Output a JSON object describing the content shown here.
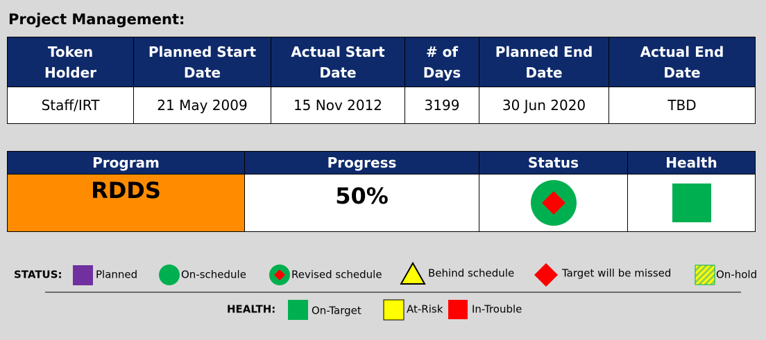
{
  "title": "Project Management:",
  "table": {
    "headers": [
      [
        "Token",
        "Holder"
      ],
      [
        "Planned Start",
        "Date"
      ],
      [
        "Actual Start",
        "Date"
      ],
      [
        "# of",
        "Days"
      ],
      [
        "Planned End",
        "Date"
      ],
      [
        "Actual End",
        "Date"
      ]
    ],
    "rows": [
      [
        "Staff/IRT",
        "21 May 2009",
        "15 Nov 2012",
        "3199",
        "30 Jun 2020",
        "TBD"
      ]
    ]
  },
  "summary": {
    "headers": [
      "Program",
      "Progress",
      "Status",
      "Health"
    ],
    "program": "RDDS",
    "progress": "50%"
  },
  "legend": {
    "status_label": "STATUS:",
    "status": [
      "Planned",
      "On-schedule",
      "Revised schedule",
      "Behind schedule",
      "Target will be missed",
      "On-hold"
    ],
    "health_label": "HEALTH:",
    "health": [
      "On-Target",
      "At-Risk",
      "In-Trouble"
    ]
  }
}
